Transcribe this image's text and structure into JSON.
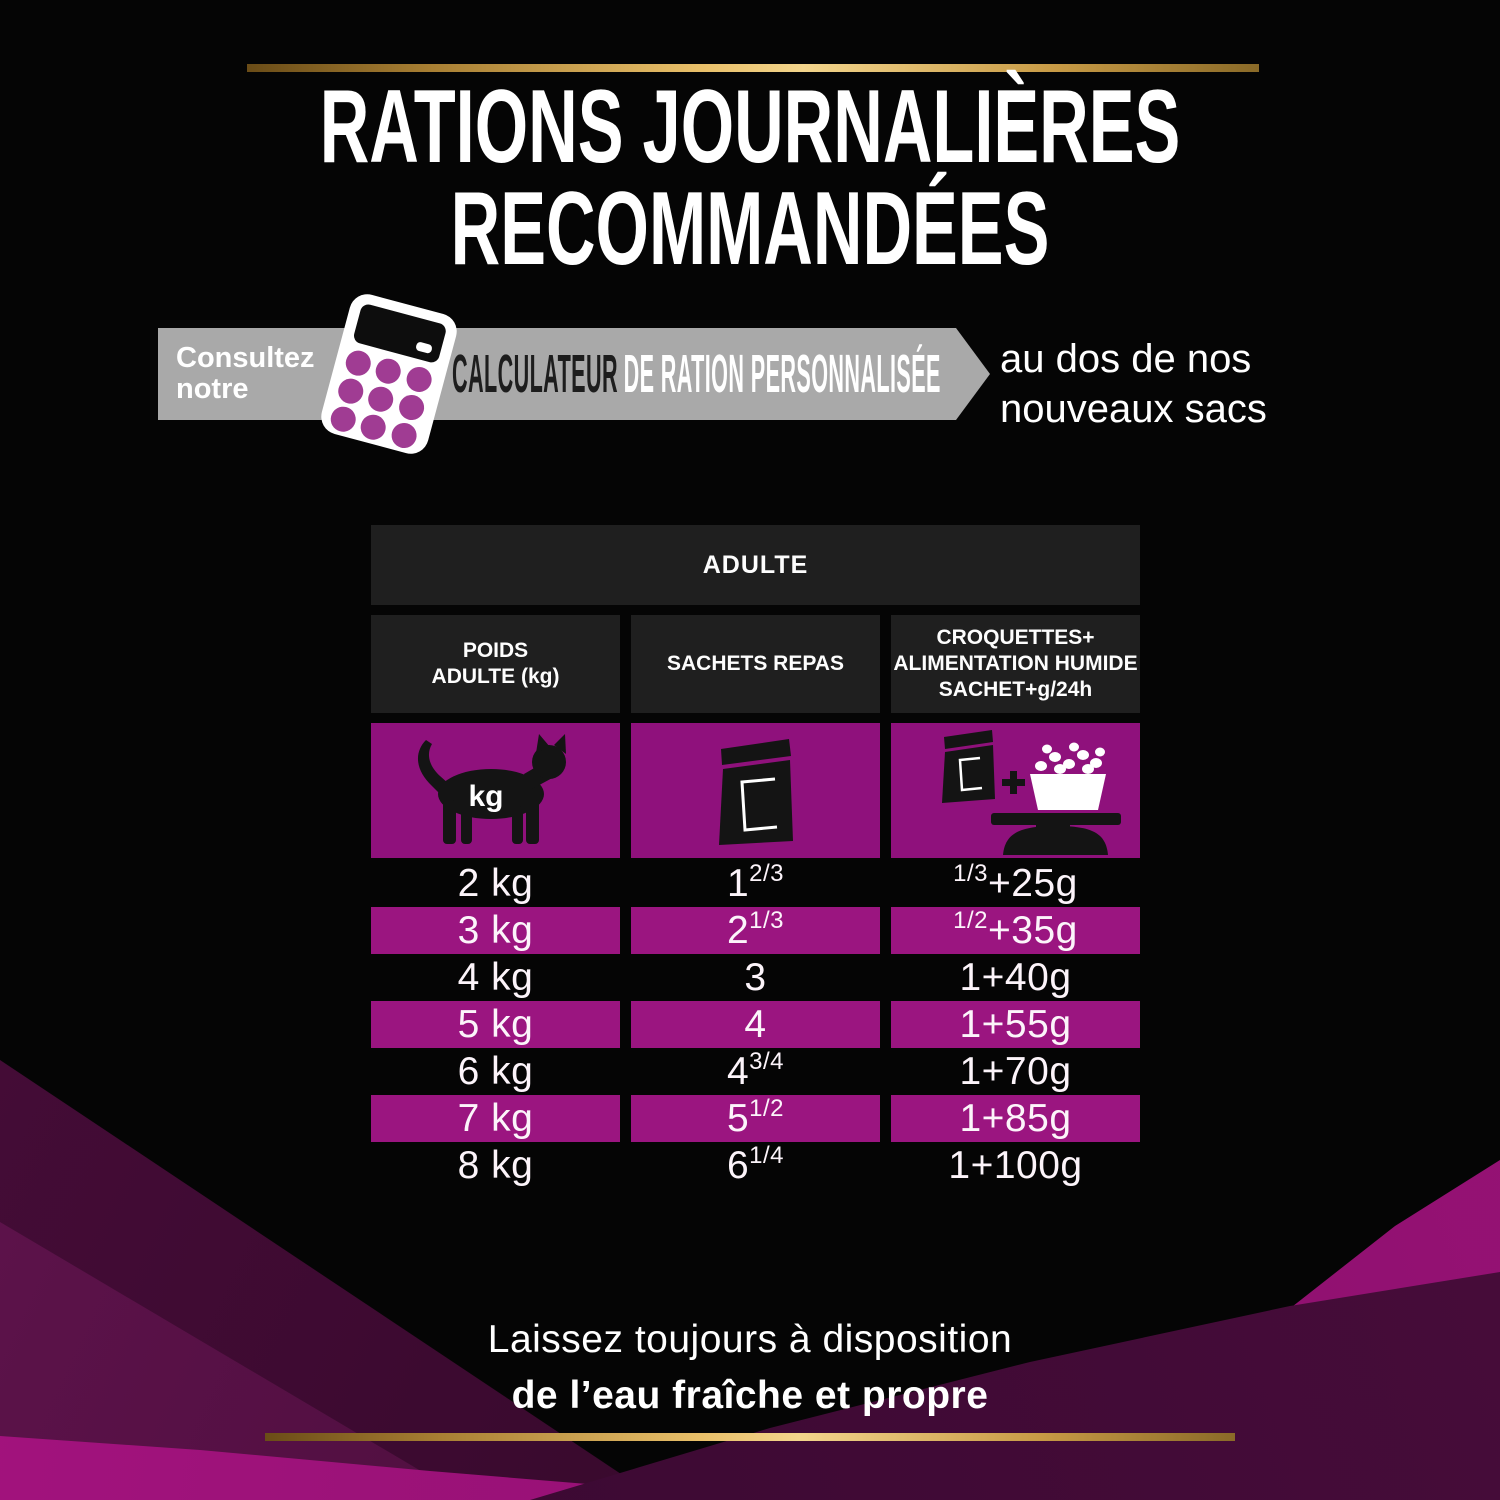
{
  "title": {
    "line1": "RATIONS JOURNALIÈRES",
    "line2": "RECOMMANDÉES"
  },
  "banner": {
    "intro": "Consultez\nnotre",
    "ribbon_black": "CALCULATEUR",
    "ribbon_white": "DE RATION PERSONNALISÉE",
    "side_note": "au dos de nos\nnouveaux sacs"
  },
  "table": {
    "group_header": "ADULTE",
    "columns": [
      "POIDS\nADULTE (kg)",
      "SACHETS REPAS",
      "CROQUETTES+\nALIMENTATION HUMIDE\nSACHET+g/24h"
    ],
    "unit_label": "kg",
    "rows": [
      {
        "highlight": false,
        "cells": [
          [
            {
              "t": "2 kg"
            }
          ],
          [
            {
              "t": "1 "
            },
            {
              "t": "2/3",
              "frac": true
            }
          ],
          [
            {
              "t": "1/3",
              "frac": true
            },
            {
              "t": "+25g"
            }
          ]
        ]
      },
      {
        "highlight": true,
        "cells": [
          [
            {
              "t": "3 kg"
            }
          ],
          [
            {
              "t": "2 "
            },
            {
              "t": "1/3",
              "frac": true
            }
          ],
          [
            {
              "t": "1/2",
              "frac": true
            },
            {
              "t": "+35g"
            }
          ]
        ]
      },
      {
        "highlight": false,
        "cells": [
          [
            {
              "t": "4 kg"
            }
          ],
          [
            {
              "t": "3"
            }
          ],
          [
            {
              "t": "1+40g"
            }
          ]
        ]
      },
      {
        "highlight": true,
        "cells": [
          [
            {
              "t": "5 kg"
            }
          ],
          [
            {
              "t": "4"
            }
          ],
          [
            {
              "t": "1+55g"
            }
          ]
        ]
      },
      {
        "highlight": false,
        "cells": [
          [
            {
              "t": "6 kg"
            }
          ],
          [
            {
              "t": "4 "
            },
            {
              "t": "3/4",
              "frac": true
            }
          ],
          [
            {
              "t": "1+70g"
            }
          ]
        ]
      },
      {
        "highlight": true,
        "cells": [
          [
            {
              "t": "7 kg"
            }
          ],
          [
            {
              "t": "5 "
            },
            {
              "t": "1/2",
              "frac": true
            }
          ],
          [
            {
              "t": "1+85g"
            }
          ]
        ]
      },
      {
        "highlight": false,
        "cells": [
          [
            {
              "t": "8 kg"
            }
          ],
          [
            {
              "t": "6 "
            },
            {
              "t": "1/4",
              "frac": true
            }
          ],
          [
            {
              "t": "1+100g"
            }
          ]
        ]
      }
    ]
  },
  "footer": {
    "line1": "Laissez toujours à disposition",
    "line2": "de l’eau fraîche et propre"
  },
  "colors": {
    "magenta_row": "#9b1580",
    "magenta_icon_box": "#8f117c",
    "header_box": "#1f1f1f",
    "banner_gray": "#a9a9a9",
    "gold": "#d9ab52",
    "calculator_dot": "#a03c93",
    "text": "#ffffff",
    "background": "#050505"
  }
}
